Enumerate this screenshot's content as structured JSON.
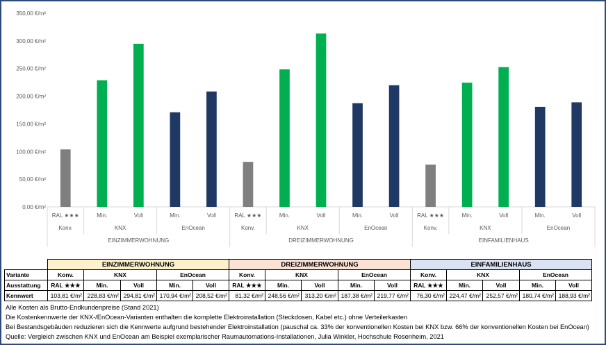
{
  "chart_data": {
    "type": "bar",
    "ylim": [
      0,
      350
    ],
    "yticks": [
      "0,00 €/m²",
      "50,00 €/m²",
      "100,00 €/m²",
      "150,00 €/m²",
      "200,00 €/m²",
      "250,00 €/m²",
      "300,00 €/m²",
      "350,00 €/m²"
    ],
    "grid": false,
    "groups": [
      {
        "name": "EINZIMMERWOHNUNG",
        "subgroups": [
          {
            "name": "Konv.",
            "bars": [
              {
                "label": "RAL ★★★",
                "value": 103.81,
                "color": "#7f7f7f"
              }
            ]
          },
          {
            "name": "KNX",
            "bars": [
              {
                "label": "Min.",
                "value": 228.83,
                "color": "#00b050"
              },
              {
                "label": "Voll",
                "value": 294.81,
                "color": "#00b050"
              }
            ]
          },
          {
            "name": "EnOcean",
            "bars": [
              {
                "label": "Min.",
                "value": 170.94,
                "color": "#203864"
              },
              {
                "label": "Voll",
                "value": 208.52,
                "color": "#203864"
              }
            ]
          }
        ]
      },
      {
        "name": "DREIZIMMERWOHNUNG",
        "subgroups": [
          {
            "name": "Konv.",
            "bars": [
              {
                "label": "RAL ★★★",
                "value": 81.32,
                "color": "#7f7f7f"
              }
            ]
          },
          {
            "name": "KNX",
            "bars": [
              {
                "label": "Min.",
                "value": 248.56,
                "color": "#00b050"
              },
              {
                "label": "Voll",
                "value": 313.2,
                "color": "#00b050"
              }
            ]
          },
          {
            "name": "EnOcean",
            "bars": [
              {
                "label": "Min.",
                "value": 187.38,
                "color": "#203864"
              },
              {
                "label": "Voll",
                "value": 219.77,
                "color": "#203864"
              }
            ]
          }
        ]
      },
      {
        "name": "EINFAMILIENHAUS",
        "subgroups": [
          {
            "name": "Konv.",
            "bars": [
              {
                "label": "RAL ★★★",
                "value": 76.3,
                "color": "#7f7f7f"
              }
            ]
          },
          {
            "name": "KNX",
            "bars": [
              {
                "label": "Min.",
                "value": 224.47,
                "color": "#00b050"
              },
              {
                "label": "Voll",
                "value": 252.57,
                "color": "#00b050"
              }
            ]
          },
          {
            "name": "EnOcean",
            "bars": [
              {
                "label": "Min.",
                "value": 180.74,
                "color": "#203864"
              },
              {
                "label": "Voll",
                "value": 188.93,
                "color": "#203864"
              }
            ]
          }
        ]
      }
    ]
  },
  "table": {
    "row_labels": {
      "variante": "Variante",
      "ausstattung": "Ausstattung",
      "kennwert": "Kennwert"
    },
    "groups": [
      {
        "name": "EINZIMMERWOHNUNG",
        "color": "#fdf1cc"
      },
      {
        "name": "DREIZIMMERWOHNUNG",
        "color": "#fbe2d5"
      },
      {
        "name": "EINFAMILIENHAUS",
        "color": "#dae3f3"
      }
    ],
    "variants": [
      "Konv.",
      "KNX",
      "EnOcean",
      "Konv.",
      "KNX",
      "EnOcean",
      "Konv.",
      "KNX",
      "EnOcean"
    ],
    "ausstattung": [
      "RAL ★★★",
      "Min.",
      "Voll",
      "Min.",
      "Voll",
      "RAL ★★★",
      "Min.",
      "Voll",
      "Min.",
      "Voll",
      "RAL ★★★",
      "Min.",
      "Voll",
      "Min.",
      "Voll"
    ],
    "kennwert": [
      "103,81 €/m²",
      "228,83 €/m²",
      "294,81 €/m²",
      "170,94 €/m²",
      "208,52 €/m²",
      "81,32 €/m²",
      "248,56 €/m²",
      "313,20 €/m²",
      "187,38 €/m²",
      "219,77 €/m²",
      "76,30 €/m²",
      "224,47 €/m²",
      "252,57 €/m²",
      "180,74 €/m²",
      "188,93 €/m²"
    ]
  },
  "notes": [
    "Alle Kosten als Brutto-Endkundenpreise (Stand 2021)",
    "Die Kostenkennwerte der KNX-/EnOcean-Varianten enthalten die komplette Elektroinstallation (Steckdosen, Kabel etc.) ohne Verteilerkasten",
    "Bei Bestandsgebäuden reduzieren sich die Kennwerte aufgrund bestehender Elektroinstallation (pauschal ca. 33% der konventionellen Kosten bei KNX bzw. 66% der konventionellen Kosten bei EnOcean)",
    "Quelle: Vergleich zwischen KNX und EnOcean am Beispiel exemplarischer Raumautomations-Installationen, Julia Winkler, Hochschule Rosenheim, 2021"
  ]
}
